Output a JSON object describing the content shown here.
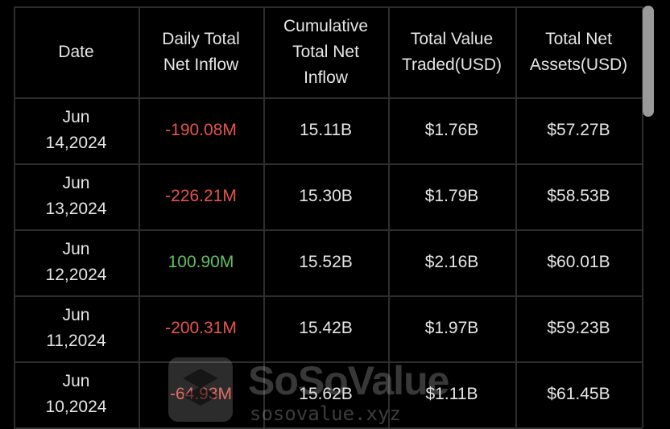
{
  "table": {
    "header": [
      [
        "Date"
      ],
      [
        "Daily Total",
        "Net Inflow"
      ],
      [
        "Cumulative",
        "Total Net",
        "Inflow"
      ],
      [
        "Total Value",
        "Traded(USD)"
      ],
      [
        "Total Net",
        "Assets(USD)"
      ]
    ],
    "rows": [
      [
        [
          "Jun",
          "14,2024"
        ],
        "-190.08M",
        "15.11B",
        "$1.76B",
        "$57.27B"
      ],
      [
        [
          "Jun",
          "13,2024"
        ],
        "-226.21M",
        "15.30B",
        "$1.79B",
        "$58.53B"
      ],
      [
        [
          "Jun",
          "12,2024"
        ],
        "100.90M",
        "15.52B",
        "$2.16B",
        "$60.01B"
      ],
      [
        [
          "Jun",
          "11,2024"
        ],
        "-200.31M",
        "15.42B",
        "$1.97B",
        "$59.23B"
      ],
      [
        [
          "Jun",
          "10,2024"
        ],
        "-64.93M",
        "15.62B",
        "$1.11B",
        "$61.45B"
      ]
    ]
  },
  "watermark": {
    "brand": "SoSoValue",
    "url": "sosovalue.xyz"
  }
}
